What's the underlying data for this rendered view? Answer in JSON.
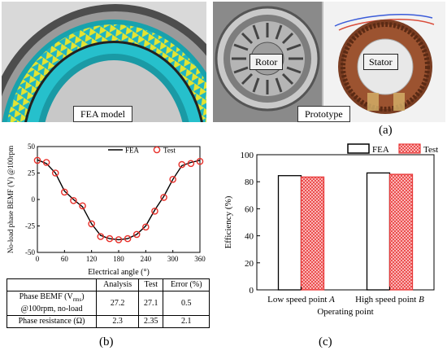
{
  "panel_a": {
    "label": "(a)",
    "fea_caption": "FEA model",
    "prototype_caption": "Prototype",
    "rotor_label": "Rotor",
    "stator_label": "Stator"
  },
  "panel_b": {
    "label": "(b)"
  },
  "panel_c": {
    "label": "(c)"
  },
  "table": {
    "headers": [
      "",
      "Analysis",
      "Test",
      "Error (%)"
    ],
    "row1": {
      "name_main": "Phase BEMF (V",
      "name_sub": "rms",
      "name_end": ")",
      "name_line2": "@100rpm, no-load",
      "analysis": "27.2",
      "test": "27.1",
      "error": "0.5"
    },
    "row2": {
      "name": "Phase resistance (Ω)",
      "analysis": "2.3",
      "test": "2.35",
      "error": "2.1"
    }
  },
  "chart_data": [
    {
      "type": "line",
      "xlabel": "Electrical angle (°)",
      "ylabel": "No-load phase BEMF (V) @100rpm",
      "xlim": [
        0,
        360
      ],
      "ylim": [
        -50,
        50
      ],
      "xticks": [
        0,
        60,
        120,
        180,
        240,
        300,
        360
      ],
      "yticks": [
        -50,
        -25,
        0,
        25,
        50
      ],
      "legend": "top-right",
      "series": [
        {
          "name": "FEA",
          "style": "line",
          "color": "#000000",
          "x": [
            0,
            20,
            40,
            60,
            80,
            100,
            120,
            140,
            160,
            180,
            200,
            220,
            240,
            260,
            280,
            300,
            320,
            340,
            360
          ],
          "y": [
            37.5,
            34,
            25,
            8,
            0,
            -7,
            -23,
            -34,
            -37,
            -38,
            -37,
            -33,
            -25,
            -10,
            3,
            19,
            32,
            35,
            37
          ]
        },
        {
          "name": "Test",
          "style": "marker",
          "color": "#e8302a",
          "x": [
            0,
            20,
            40,
            60,
            80,
            100,
            120,
            140,
            160,
            180,
            200,
            220,
            240,
            260,
            280,
            300,
            320,
            340,
            360
          ],
          "y": [
            37,
            35,
            25,
            7,
            -1,
            -6,
            -23,
            -35,
            -37,
            -38,
            -37,
            -33,
            -26,
            -11,
            2,
            19,
            33,
            34,
            36
          ]
        }
      ]
    },
    {
      "type": "bar",
      "xlabel": "Operating point",
      "ylabel": "Efficiency (%)",
      "ylim": [
        0,
        100
      ],
      "yticks": [
        0,
        20,
        40,
        60,
        80,
        100
      ],
      "categories": [
        "Low speed point A",
        "High speed point B"
      ],
      "category_parts": [
        {
          "text": "Low speed point ",
          "italic": "A"
        },
        {
          "text": "High speed point ",
          "italic": "B"
        }
      ],
      "legend": "top",
      "series": [
        {
          "name": "FEA",
          "values": [
            84.5,
            86.5
          ],
          "fill": "#ffffff"
        },
        {
          "name": "Test",
          "values": [
            83.5,
            85.5
          ],
          "fill": "hatch-red"
        }
      ]
    }
  ]
}
